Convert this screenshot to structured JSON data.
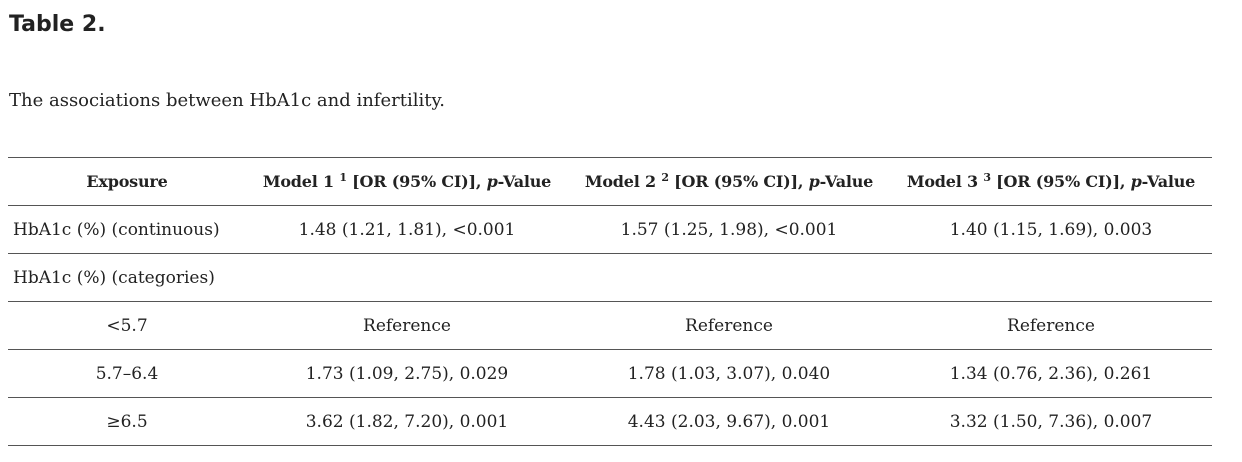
{
  "table_label": "Table 2.",
  "caption": "The associations between HbA1c and infertility.",
  "header": {
    "exposure": "Exposure",
    "model1": {
      "name": "Model 1 ",
      "sup": "1",
      "mid": " [OR (95% CI)], ",
      "p": "p",
      "tail": "-Value"
    },
    "model2": {
      "name": "Model 2 ",
      "sup": "2",
      "mid": " [OR (95% CI)], ",
      "p": "p",
      "tail": "-Value"
    },
    "model3": {
      "name": "Model 3 ",
      "sup": "3",
      "mid": " [OR (95% CI)], ",
      "p": "p",
      "tail": "-Value"
    }
  },
  "rows": [
    {
      "exposure": "HbA1c (%) (continuous)",
      "m1": "1.48 (1.21, 1.81), <0.001",
      "m2": "1.57 (1.25, 1.98), <0.001",
      "m3": "1.40 (1.15, 1.69), 0.003"
    },
    {
      "exposure": "HbA1c (%) (categories)",
      "m1": "",
      "m2": "",
      "m3": ""
    },
    {
      "exposure": "<5.7",
      "m1": "Reference",
      "m2": "Reference",
      "m3": "Reference"
    },
    {
      "exposure": "5.7–6.4",
      "m1": "1.73 (1.09, 2.75), 0.029",
      "m2": "1.78 (1.03, 3.07), 0.040",
      "m3": "1.34 (0.76, 2.36), 0.261"
    },
    {
      "exposure": "≥6.5",
      "m1": "3.62 (1.82, 7.20), 0.001",
      "m2": "4.43 (2.03, 9.67), 0.001",
      "m3": "3.32 (1.50, 7.36), 0.007"
    }
  ]
}
